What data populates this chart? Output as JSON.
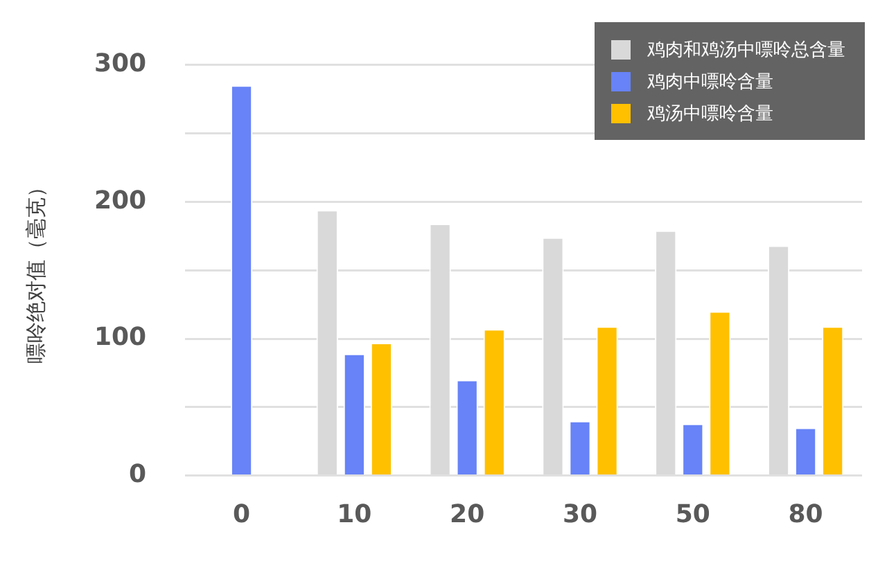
{
  "chart_data": {
    "type": "bar",
    "ylabel": "嘌呤绝对值（毫克）",
    "categories": [
      "0",
      "10",
      "20",
      "30",
      "50",
      "80"
    ],
    "series": [
      {
        "name": "鸡肉和鸡汤中嘌呤总含量",
        "color": "#d9d9d9",
        "values": [
          null,
          194,
          184,
          174,
          179,
          168
        ]
      },
      {
        "name": "鸡肉中嘌呤含量",
        "color": "#6783f7",
        "values": [
          285,
          89,
          70,
          40,
          38,
          35
        ]
      },
      {
        "name": "鸡汤中嘌呤含量",
        "color": "#ffc000",
        "values": [
          null,
          97,
          107,
          109,
          120,
          109
        ]
      }
    ],
    "ylim": [
      0,
      300
    ],
    "yticks": [
      0,
      {
        "value": 50,
        "label": null
      },
      100,
      {
        "value": 150,
        "label": null
      },
      200,
      {
        "value": 250,
        "label": null
      },
      300
    ],
    "grid": true,
    "legend": "top right"
  }
}
